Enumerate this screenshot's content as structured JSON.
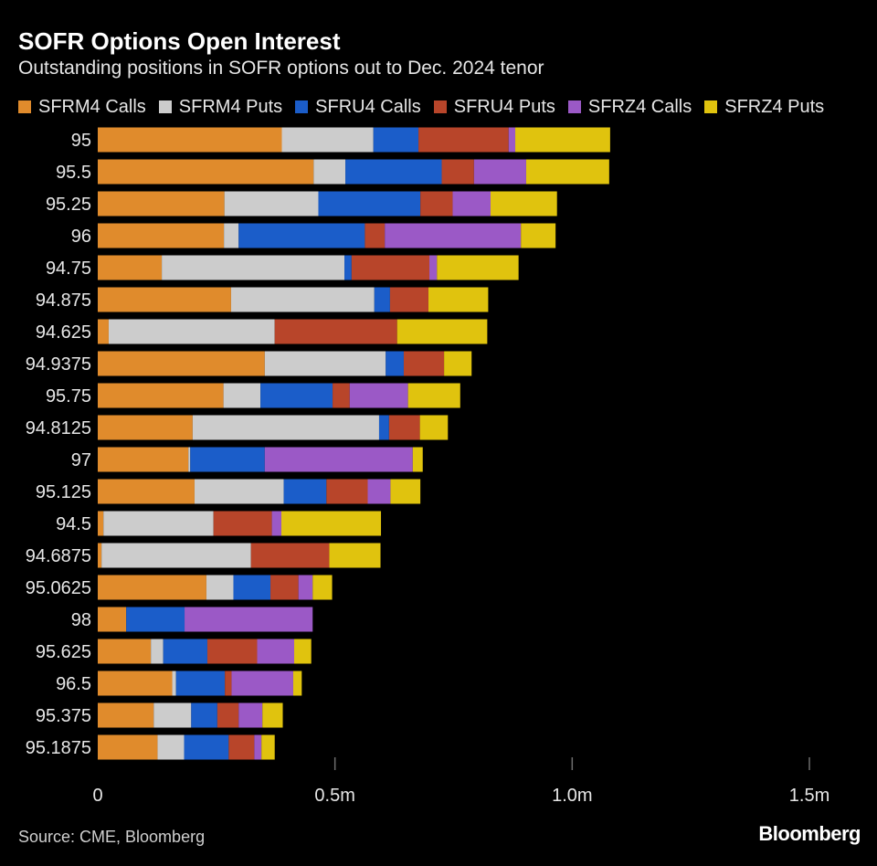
{
  "header": {
    "title": "SOFR Options Open Interest",
    "subtitle": "Outstanding positions in SOFR options out to Dec. 2024 tenor"
  },
  "footer": {
    "source": "Source: CME, Bloomberg",
    "brand": "Bloomberg"
  },
  "colors": {
    "background": "#000000",
    "tick_text": "#e6e6e6",
    "gridline": "#6e6e6e"
  },
  "chart_data": {
    "type": "bar",
    "orientation": "horizontal",
    "stacked": true,
    "categories": [
      "95",
      "95.5",
      "95.25",
      "96",
      "94.75",
      "94.875",
      "94.625",
      "94.9375",
      "95.75",
      "94.8125",
      "97",
      "95.125",
      "94.5",
      "94.6875",
      "95.0625",
      "98",
      "95.625",
      "96.5",
      "95.375",
      "95.1875"
    ],
    "series": [
      {
        "name": "SFRM4 Calls",
        "color": "#e08b2c",
        "values": [
          388000,
          455000,
          267000,
          266000,
          135000,
          281000,
          23000,
          352000,
          265000,
          200000,
          191000,
          204000,
          12000,
          8000,
          229000,
          60000,
          112000,
          157000,
          118000,
          126000
        ]
      },
      {
        "name": "SFRM4 Puts",
        "color": "#cccccc",
        "values": [
          193000,
          67000,
          198000,
          31000,
          385000,
          302000,
          350000,
          255000,
          78000,
          393000,
          4000,
          188000,
          232000,
          315000,
          57000,
          0,
          26000,
          8000,
          79000,
          56000
        ]
      },
      {
        "name": "SFRU4 Calls",
        "color": "#1b5dc9",
        "values": [
          95000,
          203000,
          215000,
          266000,
          15000,
          33000,
          0,
          38000,
          152000,
          21000,
          157000,
          90000,
          0,
          0,
          78000,
          123000,
          93000,
          103000,
          55000,
          94000
        ]
      },
      {
        "name": "SFRU4 Puts",
        "color": "#b8452a",
        "values": [
          190000,
          68000,
          68000,
          42000,
          164000,
          81000,
          258000,
          85000,
          36000,
          65000,
          0,
          87000,
          123000,
          165000,
          59000,
          0,
          105000,
          14000,
          45000,
          54000
        ]
      },
      {
        "name": "SFRZ4 Calls",
        "color": "#9b59c6",
        "values": [
          14000,
          110000,
          80000,
          287000,
          16000,
          0,
          0,
          0,
          123000,
          0,
          312000,
          48000,
          20000,
          0,
          30000,
          270000,
          78000,
          130000,
          50000,
          15000
        ]
      },
      {
        "name": "SFRZ4 Puts",
        "color": "#e0c30e",
        "values": [
          200000,
          175000,
          140000,
          73000,
          172000,
          126000,
          190000,
          58000,
          110000,
          59000,
          21000,
          63000,
          210000,
          108000,
          41000,
          0,
          36000,
          18000,
          43000,
          28000
        ]
      }
    ],
    "xlim": [
      0,
      1500000
    ],
    "xticks": [
      0,
      500000,
      1000000,
      1500000
    ],
    "xtick_labels": [
      "0",
      "0.5m",
      "1.0m",
      "1.5m"
    ],
    "xlabel": "",
    "ylabel": "",
    "grid": "vertical-ticks-only",
    "legend_position": "top-left"
  }
}
